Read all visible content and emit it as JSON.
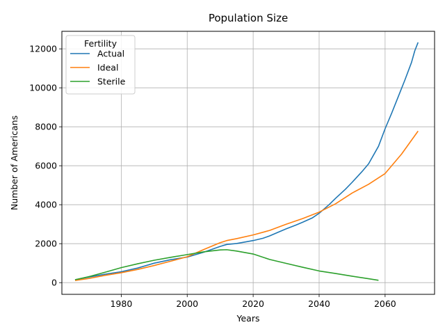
{
  "chart_data": {
    "type": "line",
    "title": "Population Size",
    "xlabel": "Years",
    "ylabel": "Number of Americans",
    "xlim": [
      1962,
      2075
    ],
    "ylim": [
      -600,
      12900
    ],
    "xticks": [
      1980,
      2000,
      2020,
      2040,
      2060
    ],
    "yticks": [
      0,
      2000,
      4000,
      6000,
      8000,
      10000,
      12000
    ],
    "grid": true,
    "legend": {
      "title": "Fertility",
      "placement": "top-left"
    },
    "series": [
      {
        "name": "Actual",
        "color": "#1f77b4",
        "x": [
          1966,
          1970,
          1975,
          1980,
          1985,
          1990,
          1995,
          2000,
          2005,
          2010,
          2012,
          2015,
          2020,
          2023,
          2025,
          2028,
          2030,
          2033,
          2035,
          2038,
          2040,
          2043,
          2045,
          2048,
          2050,
          2053,
          2055,
          2058,
          2060,
          2062,
          2064,
          2066,
          2068,
          2069,
          2070
        ],
        "values": [
          150,
          280,
          430,
          560,
          750,
          1000,
          1180,
          1310,
          1560,
          1860,
          1960,
          2010,
          2160,
          2280,
          2400,
          2620,
          2760,
          2960,
          3100,
          3330,
          3560,
          4000,
          4330,
          4800,
          5150,
          5700,
          6100,
          7000,
          7900,
          8700,
          9550,
          10400,
          11300,
          11900,
          12330
        ]
      },
      {
        "name": "Ideal",
        "color": "#ff7f0e",
        "x": [
          1966,
          1970,
          1975,
          1980,
          1985,
          1990,
          1995,
          2000,
          2005,
          2010,
          2012,
          2015,
          2020,
          2025,
          2030,
          2035,
          2040,
          2045,
          2050,
          2055,
          2060,
          2065,
          2070
        ],
        "values": [
          110,
          210,
          370,
          510,
          680,
          880,
          1100,
          1330,
          1700,
          2050,
          2160,
          2260,
          2450,
          2680,
          3000,
          3290,
          3620,
          4050,
          4600,
          5050,
          5600,
          6600,
          7780
        ]
      },
      {
        "name": "Sterile",
        "color": "#2ca02c",
        "x": [
          1966,
          1970,
          1975,
          1980,
          1985,
          1990,
          1995,
          2000,
          2005,
          2010,
          2012,
          2015,
          2020,
          2025,
          2030,
          2035,
          2040,
          2045,
          2050,
          2055,
          2058
        ],
        "values": [
          150,
          300,
          530,
          770,
          970,
          1150,
          1300,
          1440,
          1580,
          1680,
          1690,
          1620,
          1470,
          1190,
          990,
          790,
          600,
          470,
          330,
          200,
          120
        ]
      }
    ]
  }
}
